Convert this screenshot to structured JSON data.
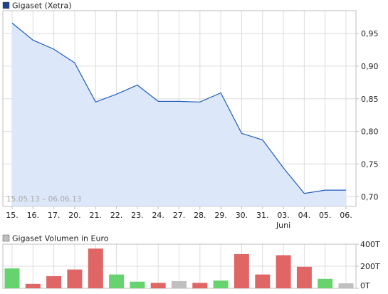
{
  "colors": {
    "price_line": "#1f5bbf",
    "price_fill": "#dce8f9",
    "legend_price": "#1f3f8f",
    "legend_volume": "#bfbfbf",
    "grid": "#dcdcdc",
    "frame": "#bfbfbf",
    "text": "#222222",
    "date_range_text": "#a9a9a9",
    "vol_up": "#66d36e",
    "vol_down": "#e06666",
    "vol_neutral": "#bfbfbf"
  },
  "chart_data": [
    {
      "type": "area",
      "legend": [
        {
          "label": "Gigaset (Xetra)",
          "color": "#1f3f8f"
        }
      ],
      "legend_position": "top-left",
      "date_range_label": "15.05.13 – 06.06.13",
      "x": [
        "15.",
        "16.",
        "17.",
        "20.",
        "21.",
        "22.",
        "23.",
        "24.",
        "27.",
        "28.",
        "29.",
        "30.",
        "31.",
        "03.",
        "04.",
        "05.",
        "06."
      ],
      "month_label": {
        "text": "Juni",
        "under": "03."
      },
      "series": [
        {
          "name": "Gigaset (Xetra)",
          "values": [
            0.966,
            0.94,
            0.926,
            0.905,
            0.845,
            0.857,
            0.871,
            0.846,
            0.846,
            0.845,
            0.859,
            0.797,
            0.787,
            0.744,
            0.705,
            0.71,
            0.71
          ]
        }
      ],
      "ylim": [
        0.685,
        0.985
      ],
      "y_ticks": [
        0.7,
        0.75,
        0.8,
        0.85,
        0.9,
        0.95
      ],
      "y_tick_labels": [
        "0,70",
        "0,75",
        "0,80",
        "0,85",
        "0,90",
        "0,95"
      ],
      "grid": true,
      "y_axis_side": "right"
    },
    {
      "type": "bar",
      "legend": [
        {
          "label": "Gigaset Volumen in Euro",
          "color": "#bfbfbf"
        }
      ],
      "legend_position": "top-left",
      "x": [
        "15.",
        "16.",
        "17.",
        "20.",
        "21.",
        "22.",
        "23.",
        "24.",
        "27.",
        "28.",
        "29.",
        "30.",
        "31.",
        "03.",
        "04.",
        "05.",
        "06."
      ],
      "series": [
        {
          "name": "Gigaset Volumen in Euro",
          "values": [
            180,
            40,
            110,
            170,
            360,
            125,
            60,
            50,
            65,
            50,
            70,
            310,
            125,
            300,
            195,
            85,
            45
          ],
          "direction": [
            "up",
            "down",
            "down",
            "down",
            "down",
            "up",
            "up",
            "down",
            "neutral",
            "down",
            "up",
            "down",
            "down",
            "down",
            "down",
            "up",
            "neutral"
          ]
        }
      ],
      "ylim": [
        0,
        400
      ],
      "y_ticks": [
        0,
        200,
        400
      ],
      "y_tick_labels": [
        "0T",
        "200T",
        "400T"
      ],
      "grid": true,
      "y_axis_side": "right"
    }
  ]
}
